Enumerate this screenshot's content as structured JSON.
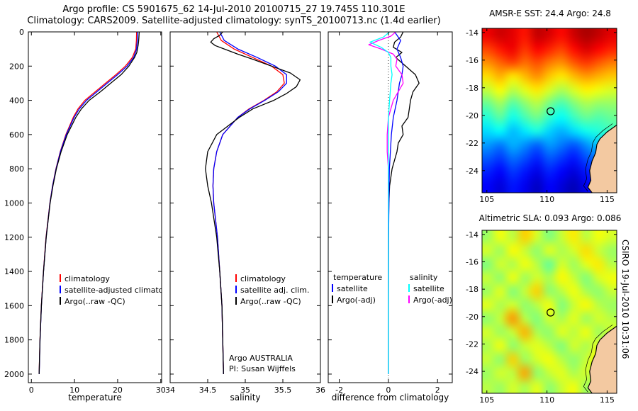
{
  "title": {
    "line1": "Argo profile: CS 5901675_62 14-Jul-2010 20100715_27 19.745S 110.301E",
    "line2": "Climatology: CARS2009. Satellite-adjusted climatology: synTS_20100713.nc (1.4d earlier)"
  },
  "footer_vertical": "CSIRO 19-Jul-2010 10:31:06",
  "coastline": [
    [
      115.8,
      -20.7
    ],
    [
      115.0,
      -21.2
    ],
    [
      114.4,
      -21.7
    ],
    [
      114.15,
      -22.1
    ],
    [
      114.05,
      -22.7
    ],
    [
      113.75,
      -23.3
    ],
    [
      113.55,
      -24.0
    ],
    [
      113.65,
      -24.7
    ],
    [
      113.4,
      -25.2
    ],
    [
      113.75,
      -25.6
    ]
  ],
  "chart_data": [
    {
      "type": "line",
      "panel": "temperature-profile",
      "xlabel": "temperature",
      "xlim": [
        -0.7,
        30.2
      ],
      "xticks": [
        0,
        10,
        20,
        30
      ],
      "ylim": [
        0,
        2050
      ],
      "yticks": [
        0,
        200,
        400,
        600,
        800,
        1000,
        1200,
        1400,
        1600,
        1800,
        2000
      ],
      "show_ytick_labels": true,
      "legend": [
        "climatology",
        "satellite-adjusted climatology",
        "Argo(..raw -QC)"
      ],
      "series": [
        {
          "name": "climatology",
          "color": "#ff0000",
          "depths": [
            0,
            50,
            100,
            150,
            200,
            250,
            300,
            350,
            400,
            450,
            500,
            600,
            700,
            800,
            900,
            1000,
            1200,
            1400,
            1600,
            1800,
            2000
          ],
          "values": [
            24.4,
            24.35,
            24.2,
            23.4,
            21.8,
            19.6,
            17.2,
            14.8,
            12.4,
            10.8,
            9.7,
            8.0,
            6.7,
            5.7,
            4.9,
            4.3,
            3.4,
            2.8,
            2.3,
            2.0,
            1.8
          ]
        },
        {
          "name": "satellite-adjusted climatology",
          "color": "#0000ff",
          "depths": [
            0,
            50,
            100,
            150,
            200,
            250,
            300,
            350,
            400,
            450,
            500,
            600,
            700,
            800,
            900,
            1000,
            1200,
            1400,
            1600,
            1800,
            2000
          ],
          "values": [
            24.6,
            24.55,
            24.4,
            23.7,
            22.2,
            20.0,
            17.6,
            15.2,
            12.8,
            11.1,
            9.9,
            8.1,
            6.75,
            5.72,
            4.92,
            4.32,
            3.42,
            2.82,
            2.32,
            2.02,
            1.82
          ]
        },
        {
          "name": "Argo(..raw -QC)",
          "color": "#000000",
          "depths": [
            0,
            20,
            40,
            60,
            80,
            100,
            120,
            150,
            200,
            250,
            300,
            350,
            400,
            450,
            500,
            600,
            700,
            800,
            900,
            1000,
            1200,
            1400,
            1600,
            1800,
            2000
          ],
          "values": [
            25.0,
            24.95,
            24.9,
            24.85,
            24.75,
            24.6,
            24.45,
            23.9,
            22.6,
            20.8,
            18.4,
            16.0,
            13.4,
            11.6,
            10.3,
            8.3,
            6.9,
            5.8,
            5.0,
            4.35,
            3.45,
            2.82,
            2.32,
            2.0,
            1.8
          ]
        }
      ]
    },
    {
      "type": "line",
      "panel": "salinity-profile",
      "xlabel": "salinity",
      "xlim": [
        34,
        36
      ],
      "xticks": [
        34,
        34.5,
        35,
        35.5,
        36
      ],
      "ylim": [
        0,
        2050
      ],
      "yticks": [
        0,
        200,
        400,
        600,
        800,
        1000,
        1200,
        1400,
        1600,
        1800,
        2000
      ],
      "show_ytick_labels": false,
      "legend": [
        "climatology",
        "satellite adj. clim.",
        "Argo(..raw -QC)"
      ],
      "annotation": [
        "Argo AUSTRALIA",
        "PI: Susan Wijffels"
      ],
      "series": [
        {
          "name": "climatology",
          "color": "#ff0000",
          "depths": [
            0,
            50,
            100,
            150,
            200,
            250,
            300,
            350,
            400,
            450,
            500,
            600,
            700,
            800,
            900,
            1000,
            1200,
            1400,
            1600,
            1800,
            2000
          ],
          "values": [
            34.62,
            34.68,
            34.85,
            35.1,
            35.35,
            35.5,
            35.52,
            35.42,
            35.25,
            35.05,
            34.9,
            34.7,
            34.62,
            34.58,
            34.57,
            34.58,
            34.63,
            34.66,
            34.69,
            34.7,
            34.71
          ]
        },
        {
          "name": "satellite adj. clim.",
          "color": "#0000ff",
          "depths": [
            0,
            50,
            100,
            150,
            200,
            250,
            300,
            350,
            400,
            450,
            500,
            600,
            700,
            800,
            900,
            1000,
            1200,
            1400,
            1600,
            1800,
            2000
          ],
          "values": [
            34.66,
            34.72,
            34.9,
            35.16,
            35.4,
            35.55,
            35.55,
            35.44,
            35.26,
            35.06,
            34.9,
            34.7,
            34.62,
            34.58,
            34.57,
            34.58,
            34.63,
            34.66,
            34.69,
            34.7,
            34.71
          ]
        },
        {
          "name": "Argo(..raw -QC)",
          "color": "#000000",
          "depths": [
            0,
            20,
            40,
            60,
            80,
            100,
            130,
            160,
            200,
            240,
            280,
            320,
            360,
            400,
            450,
            500,
            600,
            700,
            800,
            900,
            1000,
            1200,
            1400,
            1600,
            1800,
            2000
          ],
          "values": [
            34.7,
            34.66,
            34.58,
            34.54,
            34.6,
            34.72,
            34.9,
            35.1,
            35.35,
            35.6,
            35.73,
            35.68,
            35.55,
            35.38,
            35.1,
            34.92,
            34.62,
            34.5,
            34.47,
            34.5,
            34.55,
            34.62,
            34.66,
            34.69,
            34.7,
            34.71
          ]
        }
      ]
    },
    {
      "type": "line",
      "panel": "difference-profile",
      "xlabel": "difference from climatology",
      "xlim": [
        -2.45,
        2.6
      ],
      "xticks": [
        -2,
        0,
        2
      ],
      "ylim": [
        0,
        2050
      ],
      "yticks": [
        0,
        200,
        400,
        600,
        800,
        1000,
        1200,
        1400,
        1600,
        1800,
        2000
      ],
      "show_ytick_labels": false,
      "zero_line": true,
      "legend": {
        "col1_header": "temperature",
        "col1": [
          {
            "label": "satellite",
            "color": "#0000ff"
          },
          {
            "label": "Argo(-adj)",
            "color": "#000000"
          }
        ],
        "col2_header": "salinity",
        "col2": [
          {
            "label": "satellite",
            "color": "#00ffff"
          },
          {
            "label": "Argo(-adj)",
            "color": "#ff00ff"
          }
        ]
      },
      "series": [
        {
          "name": "temperature Argo(-adj)",
          "color": "#000000",
          "depths": [
            0,
            30,
            60,
            90,
            120,
            150,
            200,
            250,
            300,
            350,
            400,
            450,
            500,
            550,
            600,
            650,
            700,
            800,
            900,
            1000,
            1200,
            1600,
            2000
          ],
          "values": [
            0.6,
            0.5,
            0.25,
            0.2,
            0.55,
            0.3,
            0.7,
            1.1,
            1.25,
            1.0,
            0.9,
            0.85,
            0.8,
            0.55,
            0.6,
            0.4,
            0.35,
            0.15,
            0.05,
            0.02,
            0.0,
            0.0,
            0.0
          ]
        },
        {
          "name": "temperature satellite",
          "color": "#0000ff",
          "depths": [
            0,
            50,
            100,
            150,
            200,
            250,
            300,
            350,
            400,
            500,
            600,
            700,
            800,
            1000,
            1200,
            1600,
            2000
          ],
          "values": [
            0.25,
            0.5,
            0.35,
            0.5,
            0.6,
            0.55,
            0.45,
            0.4,
            0.35,
            0.2,
            0.12,
            0.08,
            0.04,
            0.02,
            0.01,
            0.0,
            0.0
          ]
        },
        {
          "name": "salinity Argo(-adj)",
          "color": "#ff00ff",
          "depths": [
            0,
            25,
            50,
            75,
            100,
            130,
            160,
            200,
            250,
            300,
            350,
            400,
            500,
            600,
            700,
            800,
            1000,
            1500,
            2000
          ],
          "values": [
            0.3,
            0.1,
            -0.4,
            -0.8,
            -0.3,
            0.2,
            0.35,
            0.3,
            0.55,
            0.6,
            0.4,
            0.2,
            0.0,
            -0.05,
            -0.05,
            0.0,
            0.0,
            0.0,
            0.0
          ]
        },
        {
          "name": "salinity satellite",
          "color": "#00ffff",
          "depths": [
            0,
            30,
            60,
            90,
            120,
            150,
            200,
            250,
            300,
            400,
            500,
            600,
            800,
            1000,
            1500,
            2000
          ],
          "values": [
            0.05,
            -0.2,
            -0.75,
            -0.3,
            0.0,
            0.1,
            0.1,
            0.15,
            0.1,
            0.05,
            0.0,
            0.0,
            0.0,
            0.0,
            0.0,
            0.0
          ]
        }
      ]
    },
    {
      "type": "heatmap",
      "panel": "sst-map",
      "title": "AMSR-E SST: 24.4 Argo: 24.8",
      "lon_range": [
        104.6,
        115.8
      ],
      "lat_range": [
        -13.7,
        -25.6
      ],
      "xticks": [
        105,
        110,
        115
      ],
      "yticks": [
        -14,
        -16,
        -18,
        -20,
        -22,
        -24
      ],
      "vmin": 17.0,
      "vmax": 26.0,
      "marker": {
        "lon": 110.3,
        "lat": -19.7
      },
      "values": [
        [
          25.0,
          25.3,
          25.1,
          24.7,
          25.4,
          25.2,
          24.8,
          25.3,
          25.6,
          25.4,
          25.1
        ],
        [
          24.3,
          24.7,
          25.0,
          24.4,
          24.9,
          24.6,
          24.3,
          24.8,
          25.2,
          24.9,
          24.6
        ],
        [
          23.6,
          24.0,
          24.3,
          23.9,
          24.2,
          23.8,
          23.6,
          24.1,
          24.4,
          24.1,
          23.8
        ],
        [
          22.9,
          23.3,
          22.8,
          23.2,
          23.6,
          23.1,
          22.8,
          23.2,
          23.5,
          23.3,
          23.1
        ],
        [
          22.1,
          22.6,
          22.0,
          22.4,
          22.8,
          22.3,
          21.9,
          22.3,
          22.7,
          22.5,
          22.3
        ],
        [
          21.3,
          21.8,
          21.1,
          21.6,
          22.0,
          21.4,
          21.0,
          21.5,
          21.9,
          21.7,
          21.7
        ],
        [
          20.7,
          21.2,
          20.5,
          21.0,
          21.4,
          20.8,
          20.4,
          20.9,
          21.3,
          21.1,
          21.3
        ],
        [
          20.1,
          20.4,
          19.8,
          20.2,
          20.6,
          20.0,
          19.7,
          20.1,
          20.5,
          20.7,
          20.9
        ],
        [
          19.5,
          19.2,
          19.7,
          19.4,
          19.0,
          19.5,
          19.2,
          18.9,
          19.4,
          19.9,
          19.6
        ],
        [
          18.9,
          18.6,
          19.1,
          18.8,
          18.4,
          18.9,
          18.6,
          18.3,
          18.8,
          19.1,
          18.5
        ],
        [
          18.4,
          18.1,
          18.6,
          18.3,
          17.9,
          18.4,
          18.1,
          17.8,
          18.3,
          18.6,
          17.9
        ],
        [
          18.1,
          17.8,
          18.3,
          18.0,
          17.6,
          18.1,
          17.8,
          17.5,
          18.0,
          18.3,
          17.7
        ]
      ]
    },
    {
      "type": "heatmap",
      "panel": "sla-map",
      "title": "Altimetric SLA: 0.093 Argo: 0.086",
      "lon_range": [
        104.6,
        115.8
      ],
      "lat_range": [
        -13.7,
        -25.6
      ],
      "xticks": [
        105,
        110,
        115
      ],
      "yticks": [
        -14,
        -16,
        -18,
        -20,
        -22,
        -24
      ],
      "vmin": -0.35,
      "vmax": 0.35,
      "marker": {
        "lon": 110.3,
        "lat": -19.7
      },
      "values": [
        [
          0.02,
          0.08,
          0.04,
          0.12,
          0.06,
          0.0,
          0.05,
          0.1,
          0.04,
          0.08,
          0.06
        ],
        [
          0.06,
          0.02,
          0.09,
          0.05,
          0.01,
          0.07,
          0.03,
          0.06,
          0.11,
          0.05,
          0.02
        ],
        [
          0.0,
          0.06,
          0.03,
          0.08,
          0.04,
          -0.02,
          0.06,
          0.02,
          0.07,
          0.1,
          0.04
        ],
        [
          0.05,
          0.01,
          0.08,
          0.02,
          0.06,
          0.03,
          0.09,
          0.05,
          0.0,
          0.06,
          0.08
        ],
        [
          0.02,
          0.07,
          0.0,
          0.05,
          0.12,
          0.01,
          0.04,
          0.08,
          0.03,
          0.01,
          0.05
        ],
        [
          0.07,
          0.03,
          0.06,
          0.01,
          0.04,
          0.08,
          0.0,
          0.05,
          0.09,
          0.04,
          0.02
        ],
        [
          0.01,
          0.05,
          0.16,
          0.04,
          0.0,
          0.06,
          0.03,
          0.07,
          0.02,
          0.06,
          0.04
        ],
        [
          0.06,
          0.02,
          0.05,
          0.14,
          0.03,
          0.01,
          0.07,
          0.04,
          0.08,
          0.02,
          0.06
        ],
        [
          0.03,
          0.08,
          0.01,
          0.05,
          0.07,
          0.04,
          0.0,
          0.06,
          0.03,
          0.07,
          0.04
        ],
        [
          0.05,
          0.01,
          0.12,
          0.02,
          0.06,
          0.08,
          0.04,
          0.01,
          0.05,
          0.09,
          0.03
        ],
        [
          0.02,
          0.06,
          0.04,
          0.15,
          0.01,
          0.05,
          0.07,
          0.03,
          0.06,
          0.02,
          0.05
        ],
        [
          0.04,
          0.02,
          0.06,
          0.03,
          0.07,
          0.01,
          0.05,
          0.08,
          0.02,
          0.05,
          0.03
        ]
      ]
    }
  ]
}
